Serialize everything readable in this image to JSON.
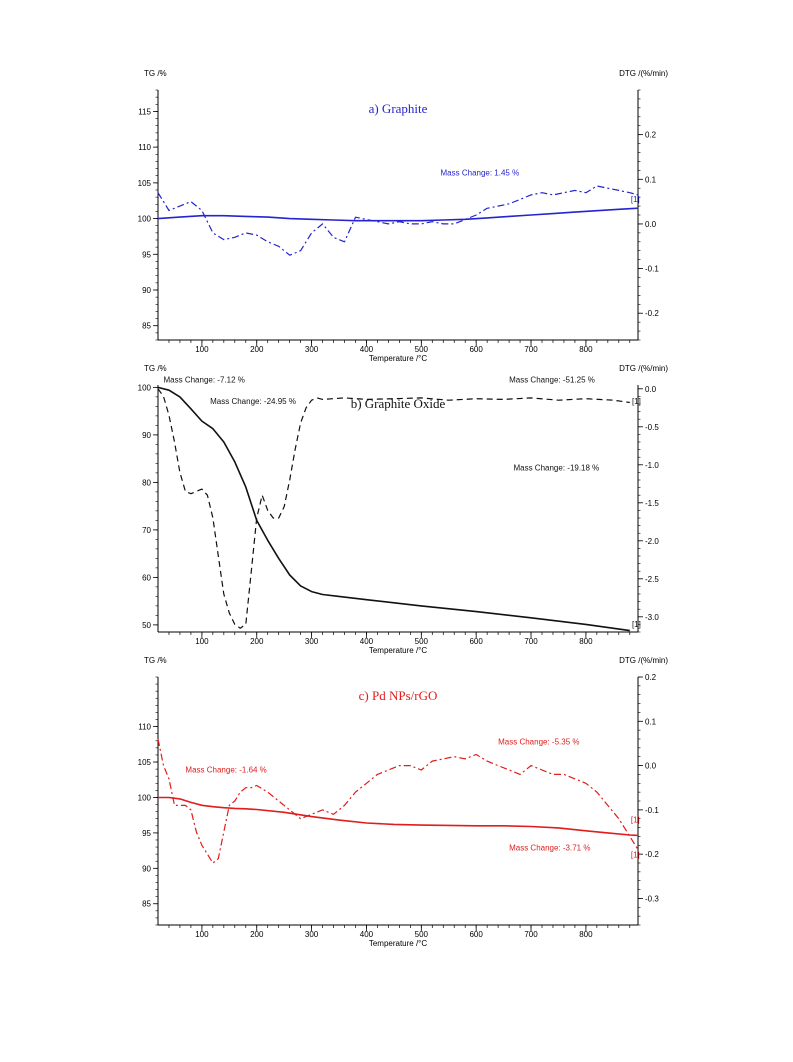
{
  "chart_data": [
    {
      "type": "line",
      "title": "a) Graphite",
      "color": "#2424d0",
      "xlabel": "Temperature /°C",
      "ylabel": "TG /%",
      "y2label": "DTG /(%/min)",
      "xlim": [
        20,
        895
      ],
      "xticks": [
        100,
        200,
        300,
        400,
        500,
        600,
        700,
        800
      ],
      "ylim": [
        83,
        118
      ],
      "yticks": [
        85,
        90,
        95,
        100,
        105,
        110,
        115
      ],
      "y2lim": [
        -0.26,
        0.3
      ],
      "y2ticks": [
        -0.2,
        -0.1,
        0.0,
        0.1,
        0.2
      ],
      "annotations": [
        {
          "text": "Mass Change: 1.45 %",
          "x": 535,
          "y": 106.0
        },
        {
          "text": "[1]",
          "x": 882,
          "y": 102.3
        }
      ],
      "series": [
        {
          "role": "TG",
          "style": "solid",
          "axis": "left",
          "x": [
            20,
            60,
            100,
            140,
            180,
            220,
            260,
            300,
            340,
            380,
            420,
            460,
            500,
            540,
            580,
            620,
            660,
            700,
            740,
            780,
            820,
            860,
            895
          ],
          "y": [
            100.0,
            100.2,
            100.4,
            100.4,
            100.3,
            100.2,
            100.0,
            99.9,
            99.8,
            99.7,
            99.7,
            99.7,
            99.7,
            99.8,
            99.9,
            100.1,
            100.3,
            100.5,
            100.7,
            100.9,
            101.1,
            101.3,
            101.45
          ]
        },
        {
          "role": "DTG",
          "style": "dash-dot",
          "axis": "right",
          "x": [
            20,
            40,
            60,
            80,
            100,
            120,
            140,
            160,
            180,
            200,
            220,
            240,
            260,
            280,
            300,
            320,
            340,
            360,
            380,
            400,
            420,
            440,
            460,
            480,
            500,
            520,
            540,
            560,
            580,
            600,
            620,
            640,
            660,
            680,
            700,
            720,
            740,
            760,
            780,
            800,
            820,
            840,
            860,
            880,
            895
          ],
          "y": [
            0.07,
            0.03,
            0.04,
            0.05,
            0.03,
            -0.02,
            -0.035,
            -0.03,
            -0.02,
            -0.025,
            -0.04,
            -0.05,
            -0.07,
            -0.06,
            -0.02,
            0.0,
            -0.03,
            -0.04,
            0.015,
            0.01,
            0.005,
            0.0,
            0.005,
            0.0,
            0.0,
            0.005,
            0.0,
            0.0,
            0.01,
            0.02,
            0.035,
            0.04,
            0.045,
            0.055,
            0.065,
            0.07,
            0.065,
            0.07,
            0.075,
            0.07,
            0.085,
            0.08,
            0.075,
            0.07,
            0.065
          ]
        }
      ]
    },
    {
      "type": "line",
      "title": "b) Graphite Oxide",
      "color": "#111111",
      "xlabel": "Temperature /°C",
      "ylabel": "TG /%",
      "y2label": "DTG /(%/min)",
      "xlim": [
        20,
        895
      ],
      "xticks": [
        100,
        200,
        300,
        400,
        500,
        600,
        700,
        800
      ],
      "ylim": [
        48.5,
        100.5
      ],
      "yticks": [
        50,
        60,
        70,
        80,
        90,
        100
      ],
      "y2lim": [
        -3.2,
        0.05
      ],
      "y2ticks": [
        -3.0,
        -2.5,
        -2.0,
        -1.5,
        -1.0,
        -0.5,
        0.0
      ],
      "annotations": [
        {
          "text": "Mass Change: -7.12 %",
          "x": 30,
          "y": 101.0
        },
        {
          "text": "Mass Change: -51.25 %",
          "x": 660,
          "y": 101.0
        },
        {
          "text": "Mass Change: -24.95 %",
          "x": 115,
          "y": 96.5
        },
        {
          "text": "Mass Change: -19.18 %",
          "x": 668,
          "y": 82.5
        },
        {
          "text": "[1]",
          "x": 884,
          "y": 96.5
        },
        {
          "text": "[1]",
          "x": 884,
          "y": 49.6
        }
      ],
      "series": [
        {
          "role": "TG",
          "style": "solid",
          "axis": "left",
          "x": [
            20,
            40,
            60,
            80,
            100,
            120,
            140,
            160,
            180,
            200,
            220,
            240,
            260,
            280,
            300,
            320,
            350,
            400,
            500,
            600,
            700,
            800,
            880
          ],
          "y": [
            100.0,
            99.4,
            98.0,
            95.5,
            92.9,
            91.3,
            88.5,
            84.3,
            79.0,
            72.0,
            67.8,
            64.0,
            60.5,
            58.2,
            57.0,
            56.4,
            56.0,
            55.3,
            54.0,
            52.8,
            51.5,
            50.1,
            48.8
          ]
        },
        {
          "role": "DTG",
          "style": "dash",
          "axis": "right",
          "x": [
            20,
            30,
            40,
            50,
            60,
            70,
            80,
            90,
            100,
            110,
            120,
            130,
            140,
            150,
            160,
            170,
            180,
            190,
            200,
            210,
            220,
            230,
            240,
            250,
            260,
            270,
            280,
            290,
            300,
            310,
            320,
            360,
            400,
            450,
            500,
            550,
            600,
            650,
            700,
            750,
            800,
            850,
            880
          ],
          "y": [
            0.0,
            -0.1,
            -0.35,
            -0.7,
            -1.1,
            -1.35,
            -1.38,
            -1.35,
            -1.32,
            -1.4,
            -1.7,
            -2.2,
            -2.7,
            -2.95,
            -3.1,
            -3.15,
            -3.1,
            -2.4,
            -1.7,
            -1.4,
            -1.6,
            -1.7,
            -1.7,
            -1.55,
            -1.2,
            -0.8,
            -0.45,
            -0.25,
            -0.15,
            -0.12,
            -0.14,
            -0.12,
            -0.14,
            -0.13,
            -0.12,
            -0.15,
            -0.13,
            -0.14,
            -0.12,
            -0.15,
            -0.13,
            -0.15,
            -0.18
          ]
        }
      ]
    },
    {
      "type": "line",
      "title": "c) Pd NPs/rGO",
      "color": "#e01c1c",
      "xlabel": "Temperature /°C",
      "ylabel": "TG /%",
      "y2label": "DTG /(%/min)",
      "xlim": [
        20,
        895
      ],
      "xticks": [
        100,
        200,
        300,
        400,
        500,
        600,
        700,
        800
      ],
      "ylim": [
        82,
        117
      ],
      "yticks": [
        85,
        90,
        95,
        100,
        105,
        110
      ],
      "y2lim": [
        -0.36,
        0.2
      ],
      "y2ticks": [
        -0.3,
        -0.2,
        -0.1,
        0.0,
        0.1,
        0.2
      ],
      "annotations": [
        {
          "text": "Mass Change: -1.64 %",
          "x": 70,
          "y": 103.5
        },
        {
          "text": "Mass Change: -5.35 %",
          "x": 640,
          "y": 107.5
        },
        {
          "text": "Mass Change: -3.71 %",
          "x": 660,
          "y": 92.5
        },
        {
          "text": "[1]",
          "x": 882,
          "y": 96.5
        },
        {
          "text": "[1]",
          "x": 882,
          "y": 91.5
        }
      ],
      "series": [
        {
          "role": "TG",
          "style": "solid",
          "axis": "left",
          "x": [
            20,
            40,
            60,
            80,
            100,
            120,
            140,
            160,
            180,
            200,
            250,
            300,
            350,
            400,
            450,
            500,
            550,
            600,
            650,
            700,
            750,
            800,
            840,
            880,
            895
          ],
          "y": [
            100.0,
            100.0,
            99.8,
            99.3,
            98.9,
            98.7,
            98.55,
            98.45,
            98.4,
            98.3,
            97.9,
            97.3,
            96.8,
            96.4,
            96.2,
            96.1,
            96.05,
            96.0,
            96.0,
            95.9,
            95.7,
            95.3,
            95.0,
            94.7,
            94.65
          ]
        },
        {
          "role": "DTG",
          "style": "dash-dot",
          "axis": "right",
          "x": [
            20,
            30,
            40,
            50,
            60,
            70,
            80,
            90,
            100,
            110,
            120,
            130,
            140,
            150,
            160,
            170,
            180,
            190,
            200,
            220,
            240,
            260,
            280,
            300,
            320,
            340,
            360,
            380,
            400,
            420,
            440,
            460,
            480,
            500,
            520,
            540,
            560,
            580,
            600,
            620,
            640,
            660,
            680,
            700,
            720,
            740,
            760,
            780,
            800,
            820,
            840,
            860,
            880,
            895
          ],
          "y": [
            0.06,
            0.0,
            -0.03,
            -0.09,
            -0.09,
            -0.09,
            -0.1,
            -0.15,
            -0.18,
            -0.2,
            -0.22,
            -0.21,
            -0.15,
            -0.09,
            -0.08,
            -0.06,
            -0.05,
            -0.05,
            -0.045,
            -0.06,
            -0.08,
            -0.1,
            -0.12,
            -0.11,
            -0.1,
            -0.11,
            -0.09,
            -0.06,
            -0.04,
            -0.02,
            -0.01,
            0.0,
            0.0,
            -0.01,
            0.01,
            0.015,
            0.02,
            0.015,
            0.025,
            0.01,
            0.0,
            -0.01,
            -0.02,
            0.0,
            -0.01,
            -0.02,
            -0.02,
            -0.03,
            -0.04,
            -0.06,
            -0.09,
            -0.12,
            -0.16,
            -0.19
          ]
        }
      ]
    }
  ]
}
